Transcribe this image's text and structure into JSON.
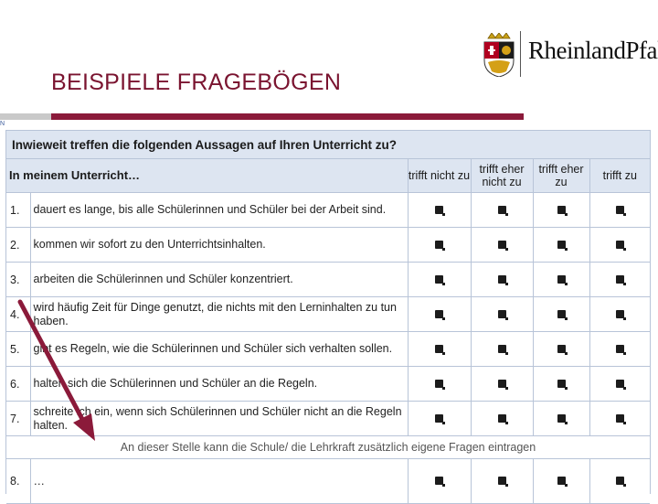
{
  "slide": {
    "title": "BEISPIELE FRAGEBÖGEN",
    "logo_text": "RheinlandPfalz",
    "corner_mark": "N"
  },
  "questionnaire": {
    "question": "Inwieweit treffen die folgenden Aussagen auf Ihren Unterricht zu?",
    "stem": "In meinem Unterricht…",
    "scale": [
      "trifft nicht zu",
      "trifft eher nicht zu",
      "trifft eher zu",
      "trifft zu"
    ],
    "items": [
      {
        "num": "1.",
        "text": "dauert es lange, bis alle Schülerinnen und Schüler bei der Arbeit sind."
      },
      {
        "num": "2.",
        "text": "kommen wir sofort zu den Unterrichtsinhalten."
      },
      {
        "num": "3.",
        "text": "arbeiten die Schülerinnen und Schüler konzentriert."
      },
      {
        "num": "4.",
        "text": "wird häufig Zeit für Dinge genutzt, die nichts mit den Lerninhalten zu tun haben."
      },
      {
        "num": "5.",
        "text": "gibt es Regeln, wie die Schülerinnen und Schüler sich verhalten sollen."
      },
      {
        "num": "6.",
        "text": "halten sich die Schülerinnen und Schüler an die Regeln."
      },
      {
        "num": "7.",
        "text": "schreite ich ein, wenn sich Schülerinnen und Schüler nicht an die Regeln halten."
      }
    ],
    "note": "An dieser Stelle kann die Schule/ die Lehrkraft zusätzlich eigene Fragen eintragen",
    "last_item": {
      "num": "8.",
      "text": "…"
    }
  },
  "colors": {
    "title": "#7a1430",
    "accent_bar": "#8b1a3a",
    "arrow": "#8b1a3a",
    "header_fill": "#dde5f1"
  }
}
